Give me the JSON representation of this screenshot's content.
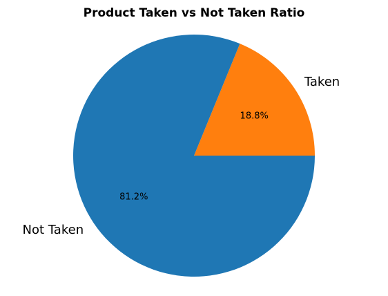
{
  "chart_data": {
    "type": "pie",
    "title": "Product Taken vs Not Taken Ratio",
    "slices": [
      {
        "label": "Taken",
        "value": 18.8,
        "pct_label": "18.8%",
        "color": "#ff7f0e"
      },
      {
        "label": "Not Taken",
        "value": 81.2,
        "pct_label": "81.2%",
        "color": "#1f77b4"
      }
    ],
    "start_angle_deg": 0,
    "direction": "counterclockwise"
  }
}
